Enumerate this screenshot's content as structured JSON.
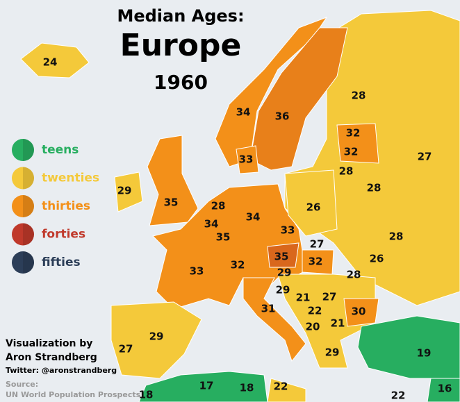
{
  "header": {
    "title": "Median Ages:",
    "region": "Europe",
    "year": "1960"
  },
  "legend": [
    {
      "label": "teens",
      "color": "#27ae60"
    },
    {
      "label": "twenties",
      "color": "#f4c93a"
    },
    {
      "label": "thirties",
      "color": "#f39019"
    },
    {
      "label": "forties",
      "color": "#c0392b"
    },
    {
      "label": "fifties",
      "color": "#2c3e58"
    }
  ],
  "credit": {
    "line1": "Visualization by",
    "line2": "Aron Strandberg",
    "twitter": "Twitter: @aronstrandberg",
    "source_label": "Source:",
    "source": "UN World Population Prospects"
  },
  "ages": [
    24,
    34,
    36,
    28,
    32,
    32,
    27,
    33,
    28,
    28,
    29,
    35,
    28,
    26,
    34,
    34,
    35,
    33,
    28,
    27,
    35,
    32,
    26,
    33,
    32,
    29,
    28,
    29,
    21,
    27,
    31,
    22,
    30,
    20,
    21,
    29,
    27,
    29,
    19,
    17,
    18,
    22,
    18,
    22,
    16
  ]
}
